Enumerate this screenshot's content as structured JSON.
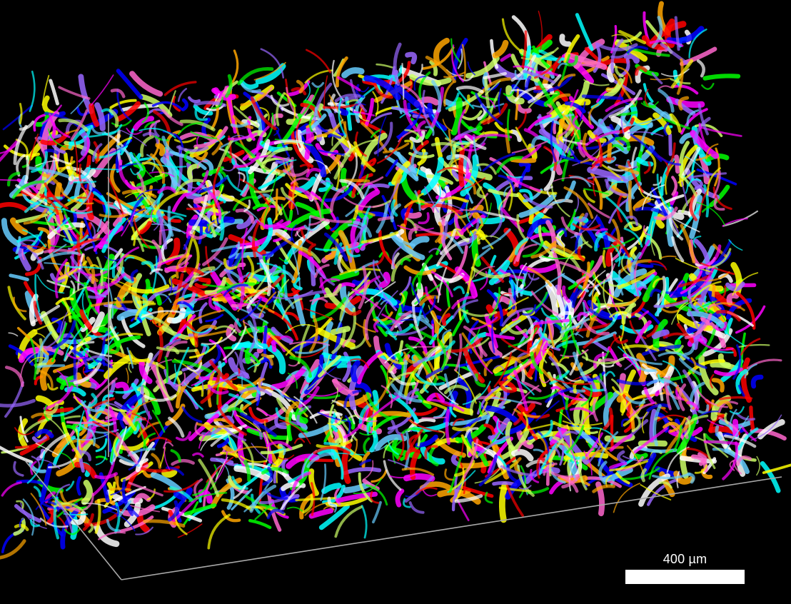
{
  "scene": {
    "background_color": "#000000",
    "palette": [
      "#ff0000",
      "#00ffff",
      "#ff00ff",
      "#ffff00",
      "#00ff00",
      "#0000ff",
      "#ffa500",
      "#ffffff",
      "#ff66cc",
      "#66ccff",
      "#ccff66",
      "#9966ff"
    ],
    "bounding_box_color": "#a9a9a9"
  },
  "scale_bar": {
    "label": "400 µm",
    "color": "#ffffff"
  }
}
